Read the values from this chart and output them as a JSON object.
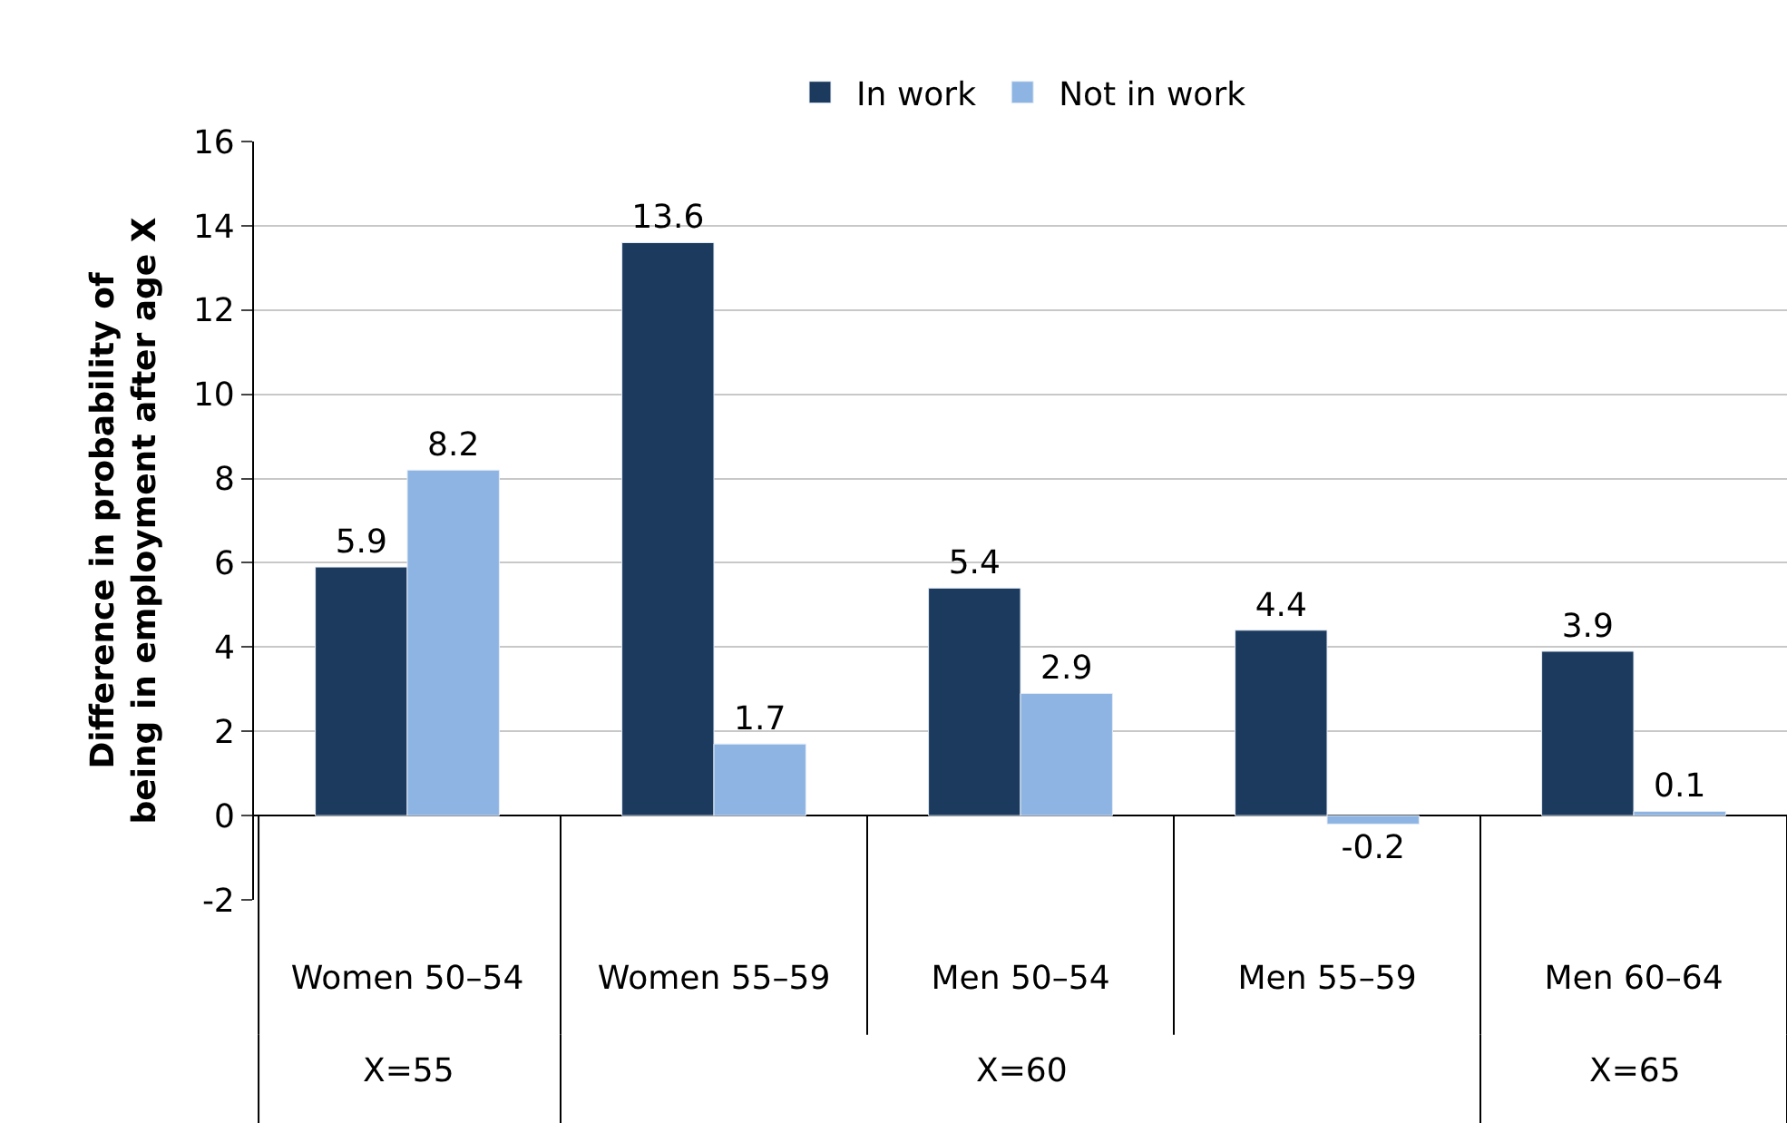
{
  "chart_data": {
    "type": "bar",
    "ylabel": "Difference in probability of being in employment after age X",
    "categories": [
      "Women 50–54",
      "Women 55–59",
      "Men 50–54",
      "Men 55–59",
      "Men 60–64"
    ],
    "series": [
      {
        "name": "In work",
        "color": "#1c3a5e",
        "values": [
          5.9,
          13.6,
          5.4,
          4.4,
          3.9
        ]
      },
      {
        "name": "Not in work",
        "color": "#8db4e2",
        "values": [
          8.2,
          1.7,
          2.9,
          -0.2,
          0.1
        ]
      }
    ],
    "ylim": [
      -2,
      16
    ],
    "yticks": [
      -2,
      0,
      2,
      4,
      6,
      8,
      10,
      12,
      14,
      16
    ],
    "grid": "y",
    "legend": "top",
    "data_labels": true,
    "annotations": [
      "X=55",
      "X=60",
      "X=65"
    ]
  }
}
